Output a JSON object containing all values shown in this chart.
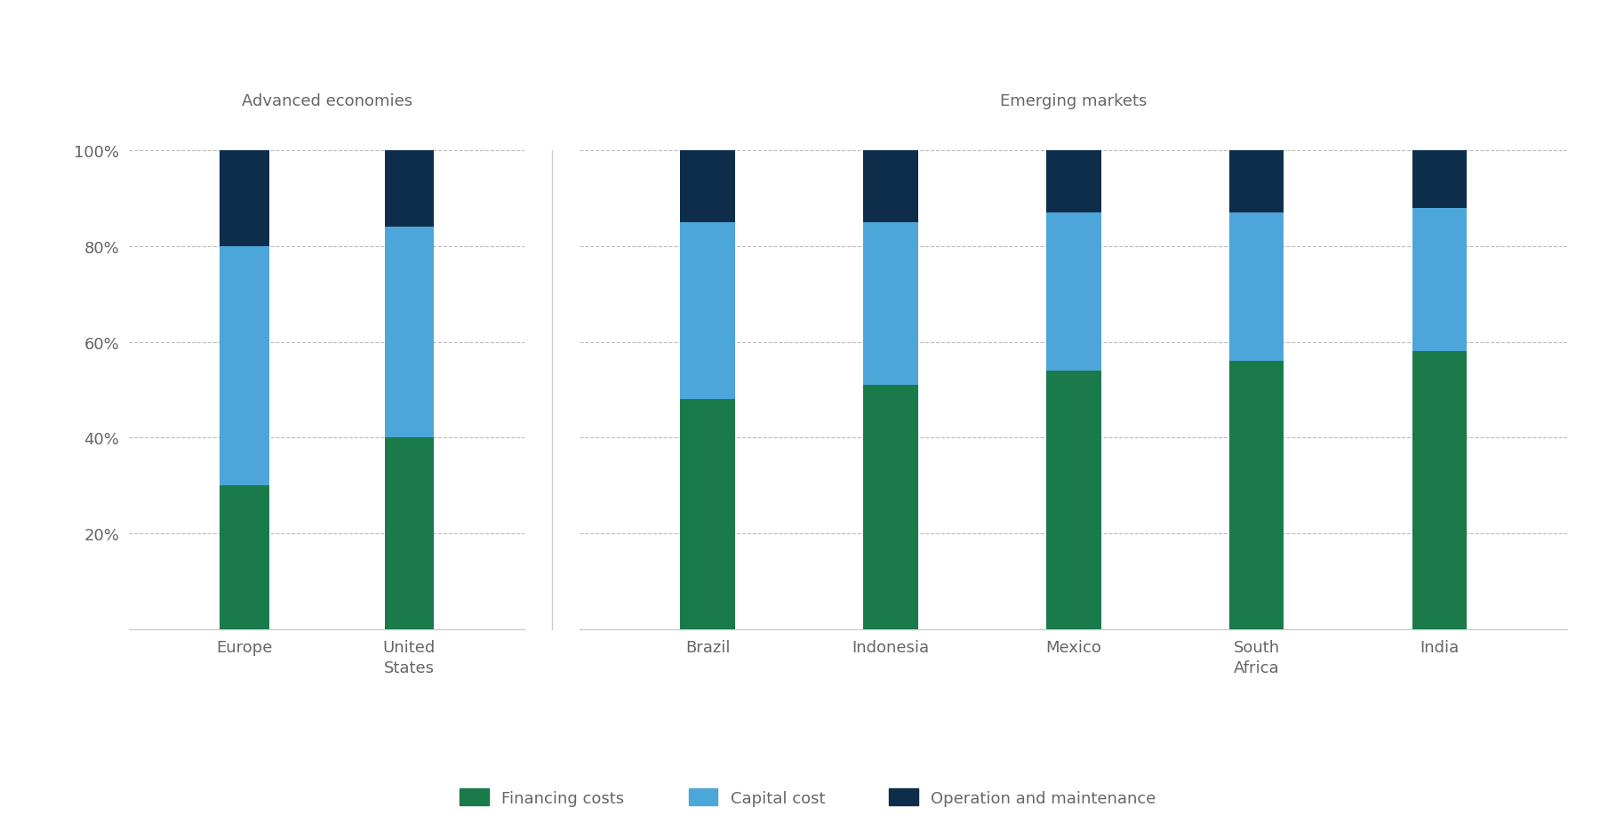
{
  "categories_adv": [
    "Europe",
    "United\nStates"
  ],
  "categories_em": [
    "Brazil",
    "Indonesia",
    "Mexico",
    "South\nAfrica",
    "India"
  ],
  "financing": [
    0.3,
    0.4,
    0.48,
    0.51,
    0.54,
    0.56,
    0.58
  ],
  "capital": [
    0.5,
    0.44,
    0.37,
    0.34,
    0.33,
    0.31,
    0.3
  ],
  "om": [
    0.2,
    0.16,
    0.15,
    0.15,
    0.13,
    0.13,
    0.12
  ],
  "color_financing": "#1a7a4a",
  "color_capital": "#4da6d9",
  "color_om": "#0d2d4a",
  "label_financing": "Financing costs",
  "label_capital": "Capital cost",
  "label_om": "Operation and maintenance",
  "title_adv": "Advanced economies",
  "title_em": "Emerging markets",
  "yticks": [
    0.0,
    0.2,
    0.4,
    0.6,
    0.8,
    1.0
  ],
  "ytick_labels": [
    "",
    "20%",
    "40%",
    "60%",
    "80%",
    "100%"
  ],
  "bar_width": 0.3,
  "background_color": "#ffffff",
  "grid_color": "#bbbbbb",
  "text_color": "#666666",
  "spine_color": "#cccccc"
}
